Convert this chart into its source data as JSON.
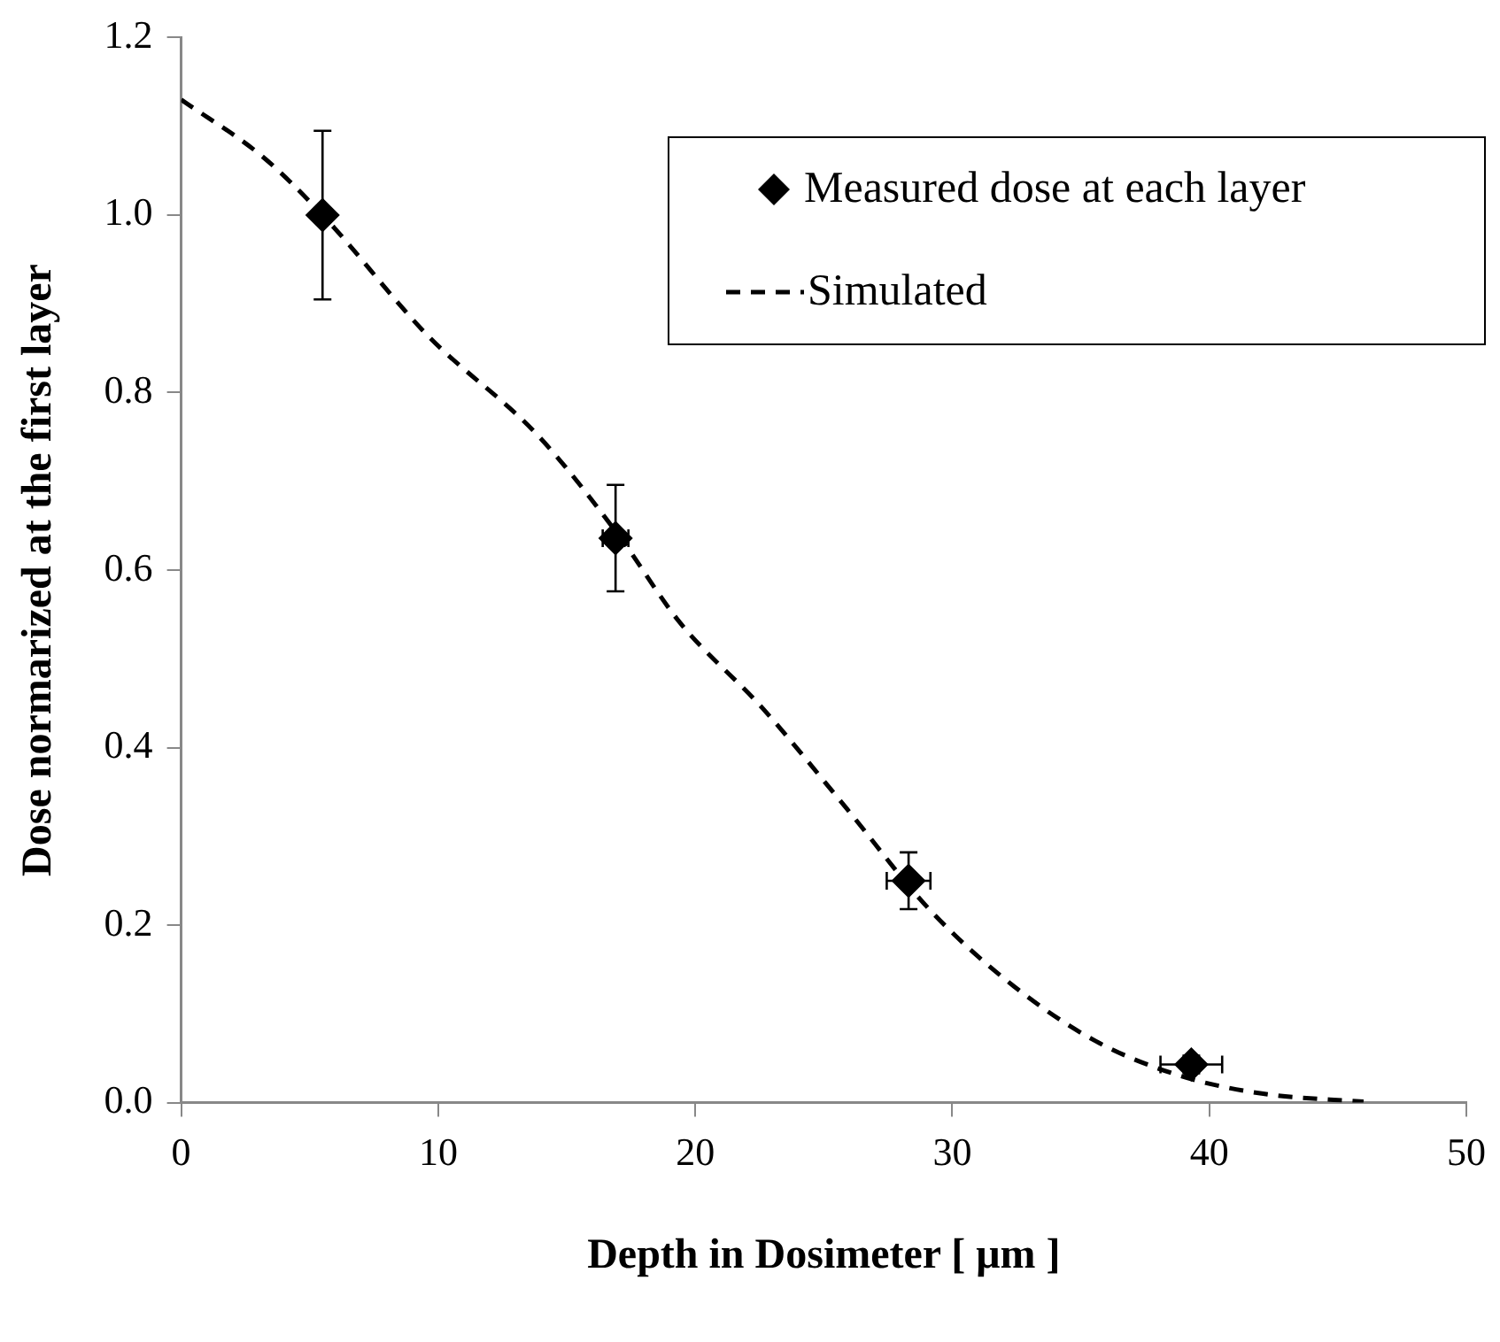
{
  "chart_data": {
    "type": "scatter",
    "xlabel": "Depth in Dosimeter [ μm ]",
    "ylabel": "Dose normarized at the first layer",
    "xlim": [
      0,
      50
    ],
    "xticks": [
      0,
      10,
      20,
      30,
      40,
      50
    ],
    "ylim": [
      0,
      1.2
    ],
    "yticks": [
      {
        "value": 0,
        "label": "0.0"
      },
      {
        "value": 0.2,
        "label": "0.2"
      },
      {
        "value": 0.4,
        "label": "0.4"
      },
      {
        "value": 0.6,
        "label": "0.6"
      },
      {
        "value": 0.8,
        "label": "0.8"
      },
      {
        "value": 1,
        "label": "1.0"
      },
      {
        "value": 1.2,
        "label": "1.2"
      }
    ],
    "grid": false,
    "legend": "top right",
    "series": [
      {
        "name": "Measured dose at each layer",
        "type": "scatter",
        "color": "#000000",
        "marker": "diamond",
        "x": [
          5.5,
          16.9,
          28.3,
          39.3
        ],
        "values": [
          1.0,
          0.636,
          0.25,
          0.043
        ],
        "errors": [
          0.095,
          0.06,
          0.032,
          0.01
        ],
        "xerrors": [
          null,
          0.5,
          0.85,
          1.2
        ]
      },
      {
        "name": "Simulated",
        "type": "line",
        "color": "#000000",
        "marker": "none",
        "line_style": "dashed",
        "x": [
          0,
          3.2,
          5.5,
          9.6,
          13.9,
          17,
          19.4,
          22.6,
          25.9,
          29.1,
          32.4,
          35.6,
          38.9,
          42.1,
          46
        ],
        "values": [
          1.13,
          1.065,
          1.0,
          0.864,
          0.751,
          0.64,
          0.541,
          0.445,
          0.331,
          0.218,
          0.131,
          0.069,
          0.03,
          0.01,
          0.001
        ]
      }
    ]
  }
}
